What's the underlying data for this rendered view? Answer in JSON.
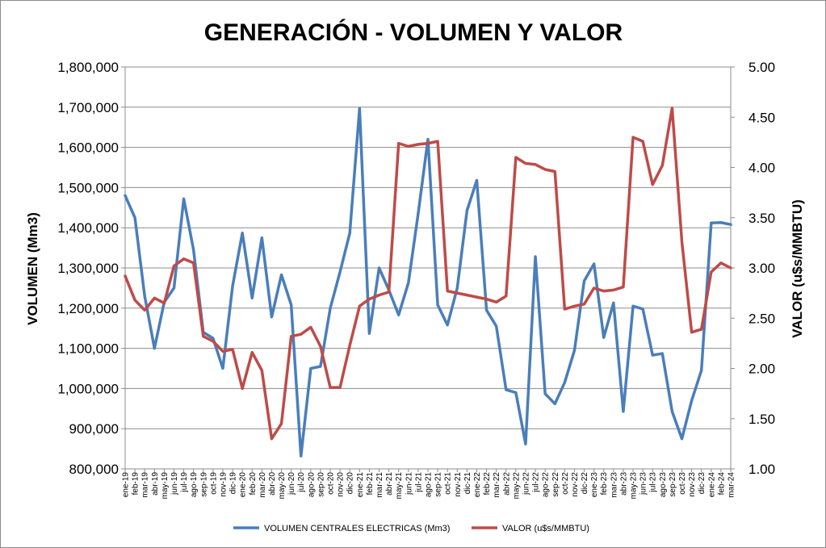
{
  "chart_data": {
    "type": "line",
    "title": "GENERACIÓN - VOLUMEN Y VALOR",
    "ylabel_left": "VOLUMEN (Mm3)",
    "ylabel_right": "VALOR (u$s/MMBTU)",
    "ylim_left": [
      800000,
      1800000
    ],
    "ylim_right": [
      1.0,
      5.0
    ],
    "yticks_left": [
      "800,000",
      "900,000",
      "1,000,000",
      "1,100,000",
      "1,200,000",
      "1,300,000",
      "1,400,000",
      "1,500,000",
      "1,600,000",
      "1,700,000",
      "1,800,000"
    ],
    "yticks_right": [
      "1.00",
      "1.50",
      "2.00",
      "2.50",
      "3.00",
      "3.50",
      "4.00",
      "4.50",
      "5.00"
    ],
    "grid": true,
    "legend": "bottom",
    "x": [
      "ene-19",
      "feb-19",
      "mar-19",
      "abr-19",
      "may-19",
      "jun-19",
      "jul-19",
      "ago-19",
      "sep-19",
      "oct-19",
      "nov-19",
      "dic-19",
      "ene-20",
      "feb-20",
      "mar-20",
      "abr-20",
      "may-20",
      "jun-20",
      "jul-20",
      "ago-20",
      "sep-20",
      "oct-20",
      "nov-20",
      "dic-20",
      "ene-21",
      "feb-21",
      "mar-21",
      "abr-21",
      "may-21",
      "jun-21",
      "jul-21",
      "ago-21",
      "sep-21",
      "oct-21",
      "nov-21",
      "dic-21",
      "ene-22",
      "feb-22",
      "mar-22",
      "abr-22",
      "may-22",
      "jun-22",
      "jul-22",
      "ago-22",
      "sep-22",
      "oct-22",
      "nov-22",
      "dic-22",
      "ene-23",
      "feb-23",
      "mar-23",
      "abr-23",
      "may-23",
      "jun-23",
      "jul-23",
      "ago-23",
      "sep-23",
      "oct-23",
      "nov-23",
      "dic-23",
      "ene-24",
      "feb-24",
      "mar-24"
    ],
    "series": [
      {
        "name": "VOLUMEN CENTRALES ELECTRICAS (Mm3)",
        "axis": "left",
        "color": "#4A7EBB",
        "values": [
          1480000,
          1425000,
          1230000,
          1100000,
          1215000,
          1250000,
          1472000,
          1345000,
          1140000,
          1125000,
          1050000,
          1255000,
          1387000,
          1225000,
          1375000,
          1178000,
          1283000,
          1208000,
          832000,
          1050000,
          1055000,
          1200000,
          1290000,
          1387000,
          1697000,
          1137000,
          1300000,
          1245000,
          1183000,
          1263000,
          1435000,
          1620000,
          1208000,
          1158000,
          1250000,
          1443000,
          1518000,
          1195000,
          1155000,
          997000,
          990000,
          862000,
          1328000,
          987000,
          962000,
          1015000,
          1095000,
          1268000,
          1310000,
          1127000,
          1213000,
          943000,
          1205000,
          1198000,
          1083000,
          1087000,
          943000,
          875000,
          970000,
          1045000,
          1412000,
          1413000,
          1408000
        ]
      },
      {
        "name": "VALOR (u$s/MMBTU)",
        "axis": "right",
        "color": "#BE4B48",
        "values": [
          2.92,
          2.68,
          2.58,
          2.7,
          2.65,
          3.02,
          3.09,
          3.05,
          2.32,
          2.27,
          2.17,
          2.19,
          1.8,
          2.16,
          1.98,
          1.3,
          1.45,
          2.32,
          2.34,
          2.41,
          2.22,
          1.81,
          1.81,
          2.23,
          2.62,
          2.69,
          2.73,
          2.76,
          4.24,
          4.21,
          4.23,
          4.24,
          4.26,
          2.77,
          2.75,
          2.73,
          2.71,
          2.69,
          2.66,
          2.72,
          4.1,
          4.04,
          4.03,
          3.98,
          3.96,
          2.59,
          2.62,
          2.64,
          2.8,
          2.77,
          2.78,
          2.81,
          4.3,
          4.26,
          3.83,
          4.02,
          4.59,
          3.26,
          2.36,
          2.39,
          2.96,
          3.05,
          3.0
        ]
      }
    ]
  }
}
